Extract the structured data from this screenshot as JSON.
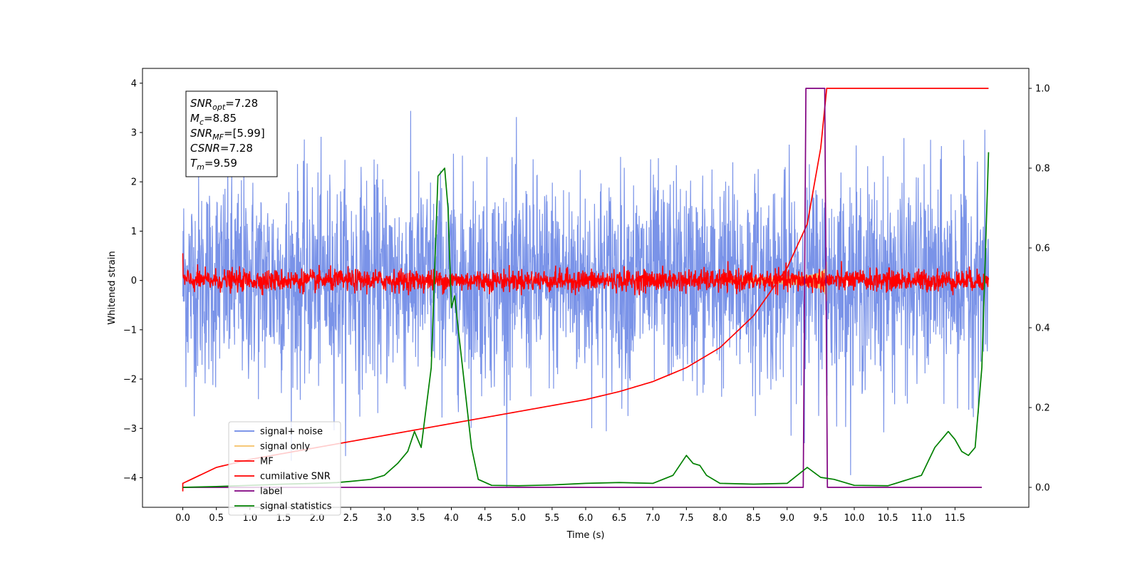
{
  "chart_data": {
    "type": "line",
    "xlabel": "Time (s)",
    "ylabel": "Whitened strain",
    "xlim": [
      -0.6,
      12.6
    ],
    "ylim_left": [
      -4.6,
      4.3
    ],
    "ylim_right": [
      -0.05,
      1.05
    ],
    "x_ticks": [
      0.0,
      0.5,
      1.0,
      1.5,
      2.0,
      2.5,
      3.0,
      3.5,
      4.0,
      4.5,
      5.0,
      5.5,
      6.0,
      6.5,
      7.0,
      7.5,
      8.0,
      8.5,
      9.0,
      9.5,
      10.0,
      10.5,
      11.0,
      11.5
    ],
    "x_tick_labels": [
      "0.0",
      "0.5",
      "1.0",
      "1.5",
      "2.0",
      "2.5",
      "3.0",
      "3.5",
      "4.0",
      "4.5",
      "5.0",
      "5.5",
      "6.0",
      "6.5",
      "7.0",
      "7.5",
      "8.0",
      "8.5",
      "9.0",
      "9.5",
      "10.0",
      "10.5",
      "11.0",
      "11.5"
    ],
    "y_ticks_left": [
      -4,
      -3,
      -2,
      -1,
      0,
      1,
      2,
      3,
      4
    ],
    "y_tick_labels_left": [
      "−4",
      "−3",
      "−2",
      "−1",
      "0",
      "1",
      "2",
      "3",
      "4"
    ],
    "y_ticks_right": [
      0.0,
      0.2,
      0.4,
      0.6,
      0.8,
      1.0
    ],
    "y_tick_labels_right": [
      "0.0",
      "0.2",
      "0.4",
      "0.6",
      "0.8",
      "1.0"
    ],
    "grid": false,
    "legend_position": "lower-left",
    "series": [
      {
        "name": "signal+ noise",
        "color": "#6b87e6",
        "axis": "left",
        "description_kind": "noise",
        "x_range": [
          0.0,
          12.0
        ],
        "amplitude_envelope": 3.0
      },
      {
        "name": "signal only",
        "color": "#f5c064",
        "axis": "left",
        "description_kind": "chirp",
        "x_range": [
          8.0,
          9.59
        ]
      },
      {
        "name": "MF",
        "color": "#ff0000",
        "axis": "left",
        "description_kind": "noise",
        "x_range": [
          0.0,
          12.0
        ],
        "amplitude_envelope": 0.3
      },
      {
        "name": "cumilative SNR",
        "color": "#ff0000",
        "axis": "right",
        "x": [
          0.0,
          0.5,
          1.0,
          1.5,
          2.0,
          2.5,
          3.0,
          3.5,
          4.0,
          4.5,
          5.0,
          5.5,
          6.0,
          6.5,
          7.0,
          7.5,
          8.0,
          8.5,
          9.0,
          9.3,
          9.5,
          9.59,
          12.0
        ],
        "values": [
          0.01,
          0.05,
          0.07,
          0.085,
          0.1,
          0.115,
          0.13,
          0.145,
          0.16,
          0.175,
          0.19,
          0.205,
          0.22,
          0.24,
          0.265,
          0.3,
          0.35,
          0.43,
          0.55,
          0.66,
          0.85,
          1.0,
          1.0
        ]
      },
      {
        "name": "label",
        "color": "#800080",
        "axis": "right",
        "x": [
          0.0,
          9.24,
          9.28,
          9.56,
          9.6,
          11.9
        ],
        "values": [
          0.0,
          0.0,
          1.0,
          1.0,
          0.0,
          0.0
        ]
      },
      {
        "name": "signal statistics",
        "color": "#008000",
        "axis": "right",
        "x": [
          0.0,
          0.5,
          1.0,
          1.5,
          2.0,
          2.3,
          2.5,
          2.8,
          3.0,
          3.2,
          3.35,
          3.45,
          3.55,
          3.7,
          3.8,
          3.9,
          3.95,
          4.0,
          4.05,
          4.1,
          4.2,
          4.3,
          4.4,
          4.6,
          5.0,
          5.5,
          6.0,
          6.5,
          7.0,
          7.3,
          7.5,
          7.6,
          7.7,
          7.8,
          8.0,
          8.5,
          9.0,
          9.3,
          9.5,
          9.7,
          10.0,
          10.5,
          11.0,
          11.2,
          11.4,
          11.5,
          11.6,
          11.7,
          11.8,
          11.9,
          12.0
        ],
        "values": [
          0.0,
          0.002,
          0.005,
          0.008,
          0.01,
          0.012,
          0.015,
          0.02,
          0.03,
          0.06,
          0.09,
          0.14,
          0.1,
          0.3,
          0.78,
          0.8,
          0.7,
          0.45,
          0.48,
          0.4,
          0.25,
          0.1,
          0.02,
          0.005,
          0.004,
          0.006,
          0.01,
          0.012,
          0.01,
          0.03,
          0.08,
          0.06,
          0.055,
          0.03,
          0.01,
          0.008,
          0.01,
          0.05,
          0.025,
          0.02,
          0.005,
          0.004,
          0.03,
          0.1,
          0.14,
          0.12,
          0.09,
          0.08,
          0.1,
          0.3,
          0.84
        ]
      }
    ],
    "annotation_box": {
      "lines": [
        {
          "sym": "SNR",
          "sub": "opt",
          "value": "=7.28"
        },
        {
          "sym": "M",
          "sub": "c",
          "value": "=8.85"
        },
        {
          "sym": "SNR",
          "sub": "MF",
          "value": "=[5.99]"
        },
        {
          "sym": "CSNR",
          "sub": "",
          "value": "=7.28"
        },
        {
          "sym": "T",
          "sub": "m",
          "value": "=9.59"
        }
      ]
    }
  }
}
